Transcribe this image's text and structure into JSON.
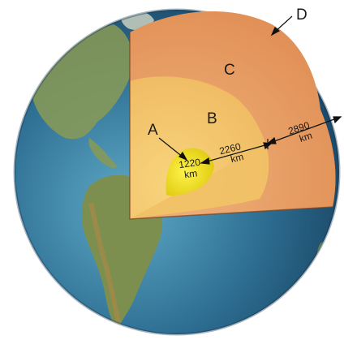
{
  "labels": {
    "inner_core": "A",
    "outer_core": "B",
    "mantle": "C",
    "crust": "D"
  },
  "measurements": {
    "inner_core_value": "1220",
    "inner_core_unit": "km",
    "outer_core_value": "2260",
    "outer_core_unit": "km",
    "mantle_value": "2890",
    "mantle_unit": "km"
  },
  "colors": {
    "ocean": "#2f6f96",
    "land": "#7c8f4e",
    "mantle": "#e79a62",
    "outer_core": "#f1c56e",
    "inner_core": "#ecdf1e",
    "cut_face_dark": "#c86a3c"
  }
}
